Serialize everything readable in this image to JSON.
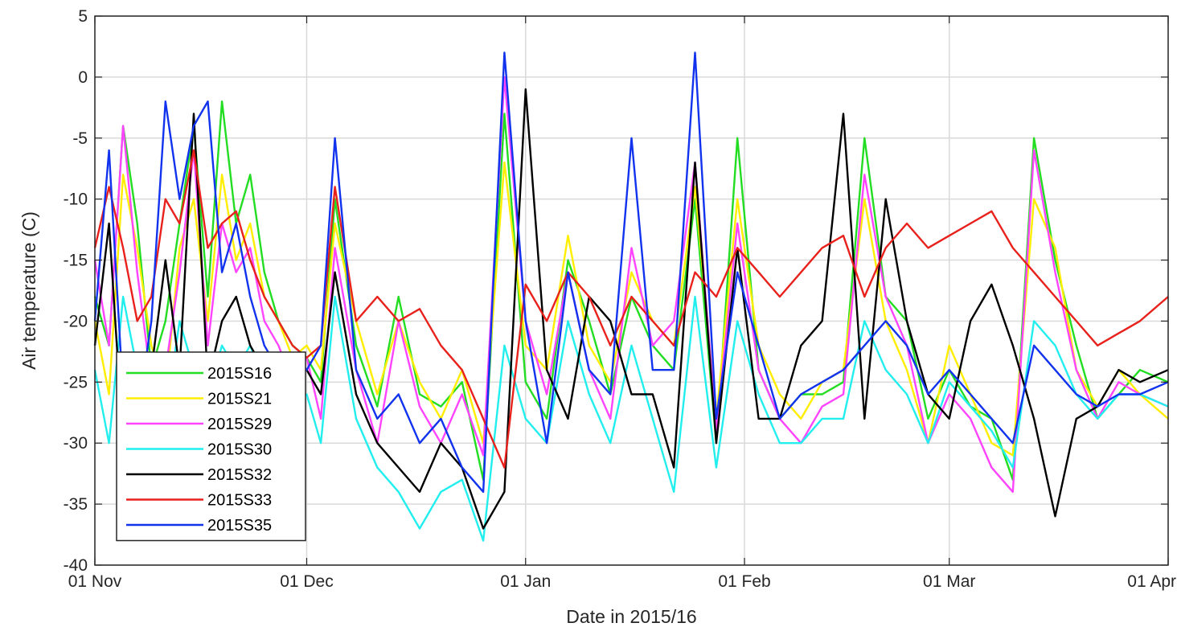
{
  "chart_data": {
    "type": "line",
    "title": "",
    "xlabel": "Date in 2015/16",
    "ylabel": "Air temperature (C)",
    "x_axis": {
      "type": "date",
      "range": [
        "2015-11-01",
        "2016-04-01"
      ],
      "ticks": [
        {
          "date": "2015-11-01",
          "label": "01 Nov"
        },
        {
          "date": "2015-12-01",
          "label": "01 Dec"
        },
        {
          "date": "2016-01-01",
          "label": "01 Jan"
        },
        {
          "date": "2016-02-01",
          "label": "01 Feb"
        },
        {
          "date": "2016-03-01",
          "label": "01 Mar"
        },
        {
          "date": "2016-04-01",
          "label": "01 Apr"
        }
      ]
    },
    "y_axis": {
      "range": [
        -40,
        5
      ],
      "ticks": [
        5,
        0,
        -5,
        -10,
        -15,
        -20,
        -25,
        -30,
        -35,
        -40
      ],
      "tick_labels": [
        "5",
        "0",
        "-5",
        "-10",
        "-15",
        "-20",
        "-25",
        "-30",
        "-35",
        "-40"
      ]
    },
    "grid": true,
    "legend_position": "bottom-left",
    "series": [
      {
        "name": "2015S16",
        "color": "#22dd22",
        "x": [
          "2015-11-01",
          "2015-11-03",
          "2015-11-05",
          "2015-11-07",
          "2015-11-09",
          "2015-11-11",
          "2015-11-13",
          "2015-11-15",
          "2015-11-17",
          "2015-11-19",
          "2015-11-21",
          "2015-11-23",
          "2015-11-25",
          "2015-11-27",
          "2015-11-29",
          "2015-12-01",
          "2015-12-03",
          "2015-12-05",
          "2015-12-08",
          "2015-12-11",
          "2015-12-14",
          "2015-12-17",
          "2015-12-20",
          "2015-12-23",
          "2015-12-26",
          "2015-12-29",
          "2016-01-01",
          "2016-01-04",
          "2016-01-07",
          "2016-01-10",
          "2016-01-13",
          "2016-01-16",
          "2016-01-19",
          "2016-01-22",
          "2016-01-25",
          "2016-01-28",
          "2016-01-31",
          "2016-02-03",
          "2016-02-06",
          "2016-02-09",
          "2016-02-12",
          "2016-02-15",
          "2016-02-18",
          "2016-02-21",
          "2016-02-24",
          "2016-02-27",
          "2016-03-01",
          "2016-03-04",
          "2016-03-07",
          "2016-03-10",
          "2016-03-13",
          "2016-03-16",
          "2016-03-19",
          "2016-03-22",
          "2016-03-25",
          "2016-03-28",
          "2016-04-01"
        ],
        "y": [
          -18,
          -22,
          -4,
          -12,
          -24,
          -20,
          -12,
          -4,
          -18,
          -2,
          -12,
          -8,
          -16,
          -20,
          -22,
          -23,
          -25,
          -10,
          -22,
          -27,
          -18,
          -26,
          -27,
          -25,
          -33,
          -3,
          -25,
          -28,
          -15,
          -20,
          -26,
          -18,
          -22,
          -24,
          -10,
          -30,
          -5,
          -24,
          -28,
          -26,
          -26,
          -25,
          -5,
          -18,
          -20,
          -28,
          -24,
          -27,
          -28,
          -33,
          -5,
          -15,
          -22,
          -28,
          -26,
          -24,
          -25
        ]
      },
      {
        "name": "2015S21",
        "color": "#ffee00",
        "x": [
          "2015-11-01",
          "2015-11-03",
          "2015-11-05",
          "2015-11-07",
          "2015-11-09",
          "2015-11-11",
          "2015-11-13",
          "2015-11-15",
          "2015-11-17",
          "2015-11-19",
          "2015-11-21",
          "2015-11-23",
          "2015-11-25",
          "2015-11-27",
          "2015-11-29",
          "2015-12-01",
          "2015-12-03",
          "2015-12-05",
          "2015-12-08",
          "2015-12-11",
          "2015-12-14",
          "2015-12-17",
          "2015-12-20",
          "2015-12-23",
          "2015-12-26",
          "2015-12-29",
          "2016-01-01",
          "2016-01-04",
          "2016-01-07",
          "2016-01-10",
          "2016-01-13",
          "2016-01-16",
          "2016-01-19",
          "2016-01-22",
          "2016-01-25",
          "2016-01-28",
          "2016-01-31",
          "2016-02-03",
          "2016-02-06",
          "2016-02-09",
          "2016-02-12",
          "2016-02-15",
          "2016-02-18",
          "2016-02-21",
          "2016-02-24",
          "2016-02-27",
          "2016-03-01",
          "2016-03-04",
          "2016-03-07",
          "2016-03-10",
          "2016-03-13",
          "2016-03-16",
          "2016-03-19",
          "2016-03-22",
          "2016-03-25",
          "2016-03-28",
          "2016-04-01"
        ],
        "y": [
          -20,
          -26,
          -8,
          -14,
          -22,
          -26,
          -14,
          -10,
          -20,
          -8,
          -15,
          -12,
          -18,
          -20,
          -23,
          -22,
          -24,
          -12,
          -20,
          -26,
          -20,
          -25,
          -28,
          -24,
          -30,
          -7,
          -22,
          -24,
          -13,
          -22,
          -25,
          -16,
          -20,
          -22,
          -9,
          -28,
          -10,
          -22,
          -26,
          -28,
          -25,
          -24,
          -10,
          -20,
          -24,
          -30,
          -22,
          -26,
          -30,
          -31,
          -10,
          -14,
          -24,
          -27,
          -24,
          -26,
          -28
        ]
      },
      {
        "name": "2015S29",
        "color": "#ff44ff",
        "x": [
          "2015-11-01",
          "2015-11-03",
          "2015-11-05",
          "2015-11-07",
          "2015-11-09",
          "2015-11-11",
          "2015-11-13",
          "2015-11-15",
          "2015-11-17",
          "2015-11-19",
          "2015-11-21",
          "2015-11-23",
          "2015-11-25",
          "2015-11-27",
          "2015-11-29",
          "2015-12-01",
          "2015-12-03",
          "2015-12-05",
          "2015-12-08",
          "2015-12-11",
          "2015-12-14",
          "2015-12-17",
          "2015-12-20",
          "2015-12-23",
          "2015-12-26",
          "2015-12-29",
          "2016-01-01",
          "2016-01-04",
          "2016-01-07",
          "2016-01-10",
          "2016-01-13",
          "2016-01-16",
          "2016-01-19",
          "2016-01-22",
          "2016-01-25",
          "2016-01-28",
          "2016-01-31",
          "2016-02-03",
          "2016-02-06",
          "2016-02-09",
          "2016-02-12",
          "2016-02-15",
          "2016-02-18",
          "2016-02-21",
          "2016-02-24",
          "2016-02-27",
          "2016-03-01",
          "2016-03-04",
          "2016-03-07",
          "2016-03-10",
          "2016-03-13",
          "2016-03-16",
          "2016-03-19",
          "2016-03-22",
          "2016-03-25",
          "2016-03-28",
          "2016-04-01"
        ],
        "y": [
          -15,
          -22,
          -4,
          -16,
          -25,
          -24,
          -16,
          -6,
          -22,
          -12,
          -16,
          -14,
          -20,
          -22,
          -25,
          -23,
          -28,
          -14,
          -24,
          -30,
          -20,
          -27,
          -30,
          -26,
          -31,
          0,
          -20,
          -26,
          -16,
          -24,
          -28,
          -14,
          -22,
          -20,
          -7,
          -29,
          -12,
          -24,
          -28,
          -30,
          -27,
          -26,
          -8,
          -18,
          -22,
          -30,
          -26,
          -28,
          -32,
          -34,
          -6,
          -16,
          -24,
          -28,
          -25,
          -26,
          -27
        ]
      },
      {
        "name": "2015S30",
        "color": "#22eeee",
        "x": [
          "2015-11-01",
          "2015-11-03",
          "2015-11-05",
          "2015-11-07",
          "2015-11-09",
          "2015-11-11",
          "2015-11-13",
          "2015-11-15",
          "2015-11-17",
          "2015-11-19",
          "2015-11-21",
          "2015-11-23",
          "2015-11-25",
          "2015-11-27",
          "2015-11-29",
          "2015-12-01",
          "2015-12-03",
          "2015-12-05",
          "2015-12-08",
          "2015-12-11",
          "2015-12-14",
          "2015-12-17",
          "2015-12-20",
          "2015-12-23",
          "2015-12-26",
          "2015-12-29",
          "2016-01-01",
          "2016-01-04",
          "2016-01-07",
          "2016-01-10",
          "2016-01-13",
          "2016-01-16",
          "2016-01-19",
          "2016-01-22",
          "2016-01-25",
          "2016-01-28",
          "2016-01-31",
          "2016-02-03",
          "2016-02-06",
          "2016-02-09",
          "2016-02-12",
          "2016-02-15",
          "2016-02-18",
          "2016-02-21",
          "2016-02-24",
          "2016-02-27",
          "2016-03-01",
          "2016-03-04",
          "2016-03-07",
          "2016-03-10",
          "2016-03-13",
          "2016-03-16",
          "2016-03-19",
          "2016-03-22",
          "2016-03-25",
          "2016-03-28",
          "2016-04-01"
        ],
        "y": [
          -24,
          -30,
          -18,
          -24,
          -30,
          -28,
          -20,
          -24,
          -26,
          -22,
          -24,
          -22,
          -25,
          -26,
          -27,
          -26,
          -30,
          -18,
          -28,
          -32,
          -34,
          -37,
          -34,
          -33,
          -38,
          -22,
          -28,
          -30,
          -20,
          -26,
          -30,
          -22,
          -28,
          -34,
          -18,
          -32,
          -20,
          -26,
          -30,
          -30,
          -28,
          -28,
          -20,
          -24,
          -26,
          -30,
          -25,
          -27,
          -29,
          -32,
          -20,
          -22,
          -26,
          -28,
          -26,
          -26,
          -27
        ]
      },
      {
        "name": "2015S32",
        "color": "#000000",
        "x": [
          "2015-11-01",
          "2015-11-03",
          "2015-11-05",
          "2015-11-07",
          "2015-11-09",
          "2015-11-11",
          "2015-11-13",
          "2015-11-15",
          "2015-11-17",
          "2015-11-19",
          "2015-11-21",
          "2015-11-23",
          "2015-11-25",
          "2015-11-27",
          "2015-11-29",
          "2015-12-01",
          "2015-12-03",
          "2015-12-05",
          "2015-12-08",
          "2015-12-11",
          "2015-12-14",
          "2015-12-17",
          "2015-12-20",
          "2015-12-23",
          "2015-12-26",
          "2015-12-29",
          "2016-01-01",
          "2016-01-04",
          "2016-01-07",
          "2016-01-10",
          "2016-01-13",
          "2016-01-16",
          "2016-01-19",
          "2016-01-22",
          "2016-01-25",
          "2016-01-28",
          "2016-01-31",
          "2016-02-03",
          "2016-02-06",
          "2016-02-09",
          "2016-02-12",
          "2016-02-15",
          "2016-02-18",
          "2016-02-21",
          "2016-02-24",
          "2016-02-27",
          "2016-03-01",
          "2016-03-04",
          "2016-03-07",
          "2016-03-10",
          "2016-03-13",
          "2016-03-16",
          "2016-03-19",
          "2016-03-22",
          "2016-03-25",
          "2016-03-28",
          "2016-04-01"
        ],
        "y": [
          -22,
          -12,
          -30,
          -30,
          -24,
          -15,
          -24,
          -3,
          -25,
          -20,
          -18,
          -22,
          -24,
          -26,
          -23,
          -24,
          -26,
          -16,
          -26,
          -30,
          -32,
          -34,
          -30,
          -32,
          -37,
          -34,
          -1,
          -24,
          -28,
          -18,
          -20,
          -26,
          -26,
          -32,
          -7,
          -30,
          -14,
          -28,
          -28,
          -22,
          -20,
          -3,
          -28,
          -10,
          -20,
          -26,
          -28,
          -20,
          -17,
          -22,
          -28,
          -36,
          -28,
          -27,
          -24,
          -25,
          -24
        ]
      },
      {
        "name": "2015S33",
        "color": "#e8211c",
        "x": [
          "2015-11-01",
          "2015-11-03",
          "2015-11-05",
          "2015-11-07",
          "2015-11-09",
          "2015-11-11",
          "2015-11-13",
          "2015-11-15",
          "2015-11-17",
          "2015-11-19",
          "2015-11-21",
          "2015-11-23",
          "2015-11-25",
          "2015-11-27",
          "2015-11-29",
          "2015-12-01",
          "2015-12-03",
          "2015-12-05",
          "2015-12-08",
          "2015-12-11",
          "2015-12-14",
          "2015-12-17",
          "2015-12-20",
          "2015-12-23",
          "2015-12-26",
          "2015-12-29",
          "2016-01-01",
          "2016-01-04",
          "2016-01-07",
          "2016-01-10",
          "2016-01-13",
          "2016-01-16",
          "2016-01-19",
          "2016-01-22",
          "2016-01-25",
          "2016-01-28",
          "2016-01-31",
          "2016-02-03",
          "2016-02-06",
          "2016-02-09",
          "2016-02-12",
          "2016-02-15",
          "2016-02-18",
          "2016-02-21",
          "2016-02-24",
          "2016-02-27",
          "2016-03-01",
          "2016-03-04",
          "2016-03-07",
          "2016-03-10",
          "2016-03-13",
          "2016-03-16",
          "2016-03-19",
          "2016-03-22",
          "2016-03-25",
          "2016-03-28",
          "2016-04-01"
        ],
        "y": [
          -14,
          -9,
          -14,
          -20,
          -18,
          -10,
          -12,
          -6,
          -14,
          -12,
          -11,
          -15,
          -18,
          -20,
          -22,
          -23,
          -22,
          -9,
          -20,
          -18,
          -20,
          -19,
          -22,
          -24,
          -28,
          -32,
          -17,
          -20,
          -16,
          -18,
          -22,
          -18,
          -20,
          -22,
          -16,
          -18,
          -14,
          -16,
          -18,
          -16,
          -14,
          -13,
          -18,
          -14,
          -12,
          -14,
          -13,
          -12,
          -11,
          -14,
          -16,
          -18,
          -20,
          -22,
          -21,
          -20,
          -18
        ]
      },
      {
        "name": "2015S35",
        "color": "#1133ee",
        "x": [
          "2015-11-01",
          "2015-11-03",
          "2015-11-05",
          "2015-11-07",
          "2015-11-09",
          "2015-11-11",
          "2015-11-13",
          "2015-11-15",
          "2015-11-17",
          "2015-11-19",
          "2015-11-21",
          "2015-11-23",
          "2015-11-25",
          "2015-11-27",
          "2015-11-29",
          "2015-12-01",
          "2015-12-03",
          "2015-12-05",
          "2015-12-08",
          "2015-12-11",
          "2015-12-14",
          "2015-12-17",
          "2015-12-20",
          "2015-12-23",
          "2015-12-26",
          "2015-12-29",
          "2016-01-01",
          "2016-01-04",
          "2016-01-07",
          "2016-01-10",
          "2016-01-13",
          "2016-01-16",
          "2016-01-19",
          "2016-01-22",
          "2016-01-25",
          "2016-01-28",
          "2016-01-31",
          "2016-02-03",
          "2016-02-06",
          "2016-02-09",
          "2016-02-12",
          "2016-02-15",
          "2016-02-18",
          "2016-02-21",
          "2016-02-24",
          "2016-02-27",
          "2016-03-01",
          "2016-03-04",
          "2016-03-07",
          "2016-03-10",
          "2016-03-13",
          "2016-03-16",
          "2016-03-19",
          "2016-03-22",
          "2016-03-25",
          "2016-03-28",
          "2016-04-01"
        ],
        "y": [
          -20,
          -6,
          -26,
          -28,
          -20,
          -2,
          -10,
          -4,
          -2,
          -16,
          -12,
          -18,
          -22,
          -24,
          -23,
          -24,
          -22,
          -5,
          -24,
          -28,
          -26,
          -30,
          -28,
          -32,
          -34,
          2,
          -20,
          -30,
          -16,
          -24,
          -26,
          -5,
          -24,
          -24,
          2,
          -28,
          -16,
          -22,
          -28,
          -26,
          -25,
          -24,
          -22,
          -20,
          -22,
          -26,
          -24,
          -26,
          -28,
          -30,
          -22,
          -24,
          -26,
          -27,
          -26,
          -26,
          -25
        ]
      }
    ]
  }
}
